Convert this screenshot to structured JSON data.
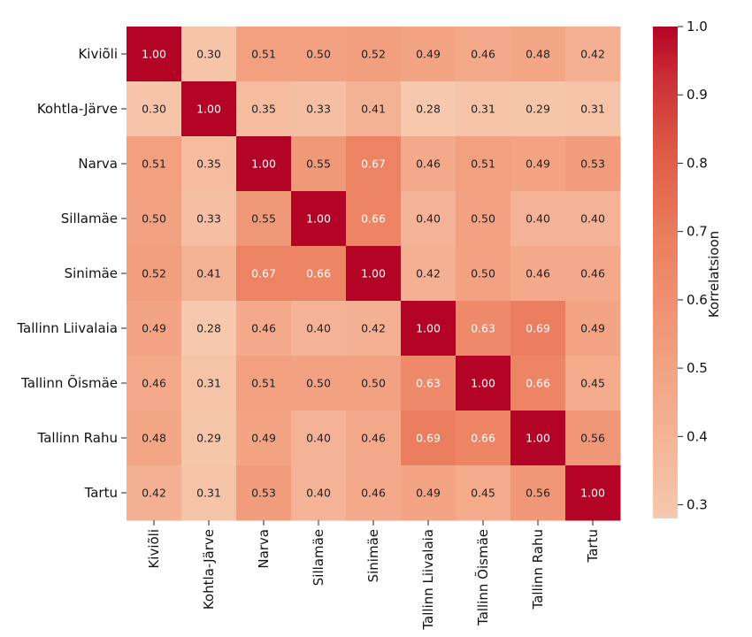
{
  "chart_data": {
    "type": "heatmap",
    "rows": [
      "Kiviõli",
      "Kohtla-Järve",
      "Narva",
      "Sillamäe",
      "Sinimäe",
      "Tallinn Liivalaia",
      "Tallinn Õismäe",
      "Tallinn Rahu",
      "Tartu"
    ],
    "columns": [
      "Kiviõli",
      "Kohtla-Järve",
      "Narva",
      "Sillamäe",
      "Sinimäe",
      "Tallinn Liivalaia",
      "Tallinn Õismäe",
      "Tallinn Rahu",
      "Tartu"
    ],
    "values": [
      [
        1.0,
        0.3,
        0.51,
        0.5,
        0.52,
        0.49,
        0.46,
        0.48,
        0.42
      ],
      [
        0.3,
        1.0,
        0.35,
        0.33,
        0.41,
        0.28,
        0.31,
        0.29,
        0.31
      ],
      [
        0.51,
        0.35,
        1.0,
        0.55,
        0.67,
        0.46,
        0.51,
        0.49,
        0.53
      ],
      [
        0.5,
        0.33,
        0.55,
        1.0,
        0.66,
        0.4,
        0.5,
        0.4,
        0.4
      ],
      [
        0.52,
        0.41,
        0.67,
        0.66,
        1.0,
        0.42,
        0.5,
        0.46,
        0.46
      ],
      [
        0.49,
        0.28,
        0.46,
        0.4,
        0.42,
        1.0,
        0.63,
        0.69,
        0.49
      ],
      [
        0.46,
        0.31,
        0.51,
        0.5,
        0.5,
        0.63,
        1.0,
        0.66,
        0.45
      ],
      [
        0.48,
        0.29,
        0.49,
        0.4,
        0.46,
        0.69,
        0.66,
        1.0,
        0.56
      ],
      [
        0.42,
        0.31,
        0.53,
        0.4,
        0.46,
        0.49,
        0.45,
        0.56,
        1.0
      ]
    ],
    "value_format": "0.00",
    "colorbar": {
      "label": "Korrelatsioon",
      "range": [
        0.28,
        1.0
      ],
      "ticks": [
        "1.0",
        "0.9",
        "0.8",
        "0.7",
        "0.6",
        "0.5",
        "0.4",
        "0.3"
      ],
      "tick_values": [
        1.0,
        0.9,
        0.8,
        0.7,
        0.6,
        0.5,
        0.4,
        0.3
      ]
    },
    "colormap": {
      "low": "#f6c8ad",
      "mid": "#f08e6f",
      "high": "#b40426"
    }
  }
}
